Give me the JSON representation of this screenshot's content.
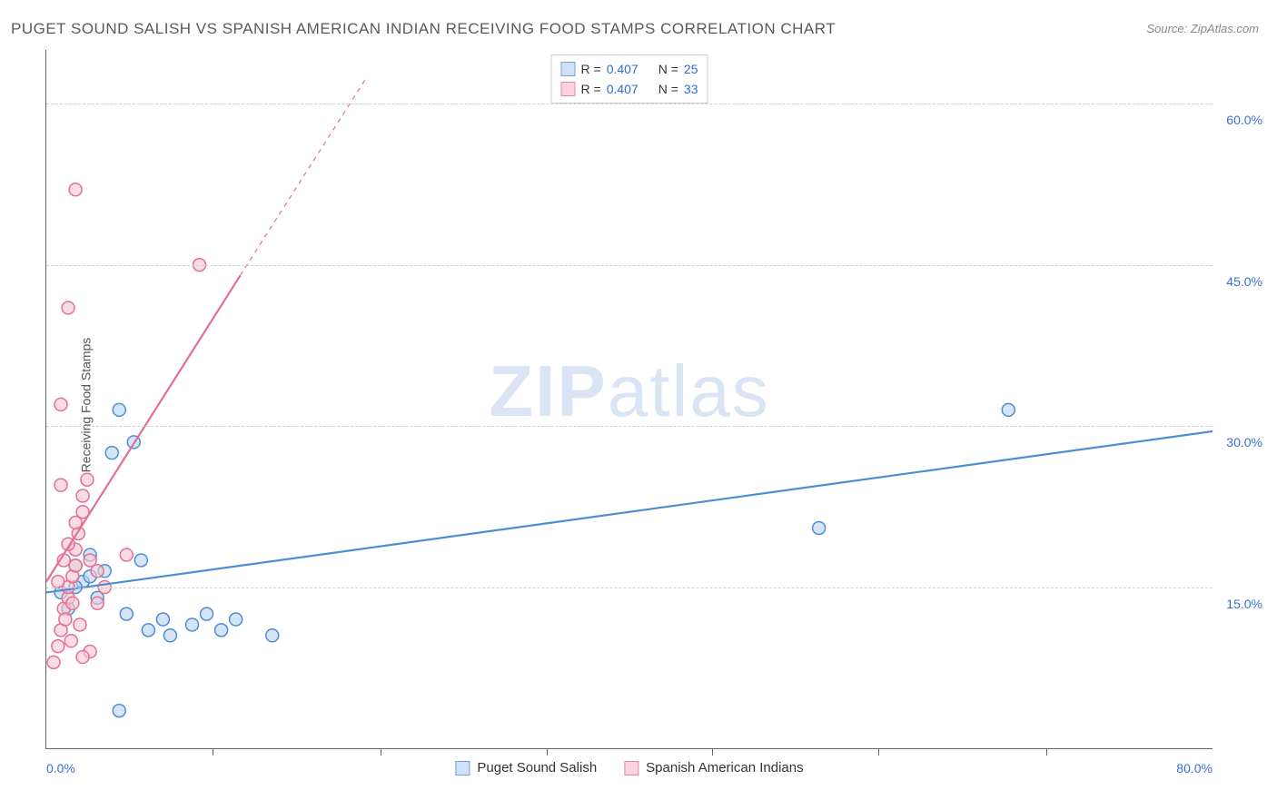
{
  "title": "PUGET SOUND SALISH VS SPANISH AMERICAN INDIAN RECEIVING FOOD STAMPS CORRELATION CHART",
  "source": "Source: ZipAtlas.com",
  "y_axis_label": "Receiving Food Stamps",
  "watermark": {
    "bold": "ZIP",
    "rest": "atlas"
  },
  "chart": {
    "type": "scatter-correlation",
    "background_color": "#ffffff",
    "grid_color": "#d0d0d0",
    "grid_dash": "4,4",
    "axis_color": "#666666",
    "tick_label_color": "#3b6fd6",
    "tick_fontsize": 14,
    "title_color": "#5a5a5a",
    "title_fontsize": 17,
    "xlim": [
      0,
      80
    ],
    "ylim": [
      0,
      65
    ],
    "x_ticks": [
      0,
      80
    ],
    "x_tick_labels": [
      "0.0%",
      "80.0%"
    ],
    "x_minor_ticks": [
      11.4,
      22.9,
      34.3,
      45.7,
      57.1,
      68.6
    ],
    "y_gridlines": [
      15,
      30,
      45,
      60
    ],
    "y_tick_labels": [
      "15.0%",
      "30.0%",
      "45.0%",
      "60.0%"
    ],
    "marker_radius": 7,
    "marker_stroke_width": 1.5,
    "line_width": 2.2,
    "series": [
      {
        "name": "Puget Sound Salish",
        "fill_color": "#b9d3f0",
        "stroke_color": "#4f8cd6",
        "fill_opacity": 0.6,
        "legend_swatch_fill": "#cfe0f7",
        "legend_swatch_border": "#6fa0e0",
        "R": 0.407,
        "N": 25,
        "data": [
          [
            1.0,
            14.5
          ],
          [
            1.5,
            13.0
          ],
          [
            2.0,
            17.0
          ],
          [
            2.5,
            15.5
          ],
          [
            3.0,
            18.0
          ],
          [
            3.5,
            14.0
          ],
          [
            4.0,
            16.5
          ],
          [
            4.5,
            27.5
          ],
          [
            5.0,
            31.5
          ],
          [
            5.5,
            12.5
          ],
          [
            6.0,
            28.5
          ],
          [
            6.5,
            17.5
          ],
          [
            7.0,
            11.0
          ],
          [
            8.0,
            12.0
          ],
          [
            8.5,
            10.5
          ],
          [
            10.0,
            11.5
          ],
          [
            11.0,
            12.5
          ],
          [
            12.0,
            11.0
          ],
          [
            13.0,
            12.0
          ],
          [
            15.5,
            10.5
          ],
          [
            5.0,
            3.5
          ],
          [
            53.0,
            20.5
          ],
          [
            66.0,
            31.5
          ],
          [
            2.0,
            15.0
          ],
          [
            3.0,
            16.0
          ]
        ],
        "trend_line": {
          "x1": 0,
          "y1": 14.5,
          "x2": 80,
          "y2": 29.5,
          "dashed_extension": false
        }
      },
      {
        "name": "Spanish American Indians",
        "fill_color": "#f7c6d2",
        "stroke_color": "#e36f93",
        "fill_opacity": 0.6,
        "legend_swatch_fill": "#f8d3de",
        "legend_swatch_border": "#e887a5",
        "R": 0.407,
        "N": 33,
        "data": [
          [
            0.5,
            8.0
          ],
          [
            0.8,
            9.5
          ],
          [
            1.0,
            11.0
          ],
          [
            1.2,
            13.0
          ],
          [
            1.5,
            14.0
          ],
          [
            1.5,
            15.0
          ],
          [
            1.8,
            16.0
          ],
          [
            2.0,
            17.0
          ],
          [
            2.0,
            18.5
          ],
          [
            2.2,
            20.0
          ],
          [
            2.5,
            22.0
          ],
          [
            2.5,
            23.5
          ],
          [
            2.8,
            25.0
          ],
          [
            1.0,
            32.0
          ],
          [
            1.5,
            41.0
          ],
          [
            2.0,
            52.0
          ],
          [
            10.5,
            45.0
          ],
          [
            0.8,
            15.5
          ],
          [
            1.3,
            12.0
          ],
          [
            1.7,
            10.0
          ],
          [
            2.3,
            11.5
          ],
          [
            3.0,
            9.0
          ],
          [
            3.5,
            13.5
          ],
          [
            1.0,
            24.5
          ],
          [
            1.5,
            19.0
          ],
          [
            2.0,
            21.0
          ],
          [
            2.5,
            8.5
          ],
          [
            3.0,
            17.5
          ],
          [
            3.5,
            16.5
          ],
          [
            5.5,
            18.0
          ],
          [
            4.0,
            15.0
          ],
          [
            1.2,
            17.5
          ],
          [
            1.8,
            13.5
          ]
        ],
        "trend_line": {
          "x1": 0,
          "y1": 15.5,
          "x2": 13.3,
          "y2": 44.0,
          "dashed_extension": true,
          "dash_x2": 22.0,
          "dash_y2": 62.5
        }
      }
    ],
    "legend_top": {
      "border_color": "#cccccc",
      "bg_color": "#ffffff",
      "label_color": "#333333",
      "value_color": "#2c6fd6",
      "fontsize": 14
    },
    "legend_bottom": {
      "fontsize": 15,
      "label_color": "#333333"
    }
  }
}
